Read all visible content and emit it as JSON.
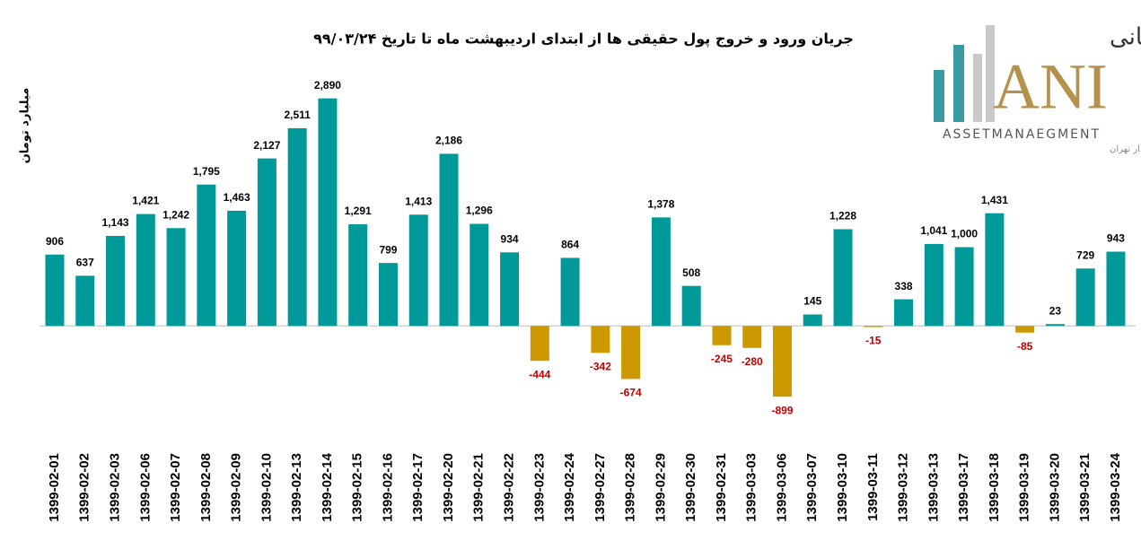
{
  "chart_data": {
    "type": "bar",
    "title": "جریان ورود و خروج پول حقیقی ها از ابتدای اردیبهشت ماه تا تاریخ ۹۹/۰۳/۲۴",
    "y_label": "میلیارد تومان",
    "categories": [
      "1399-02-01",
      "1399-02-02",
      "1399-02-03",
      "1399-02-06",
      "1399-02-07",
      "1399-02-08",
      "1399-02-09",
      "1399-02-10",
      "1399-02-13",
      "1399-02-14",
      "1399-02-15",
      "1399-02-16",
      "1399-02-17",
      "1399-02-20",
      "1399-02-21",
      "1399-02-22",
      "1399-02-23",
      "1399-02-24",
      "1399-02-27",
      "1399-02-28",
      "1399-02-29",
      "1399-02-30",
      "1399-02-31",
      "1399-03-03",
      "1399-03-06",
      "1399-03-07",
      "1399-03-10",
      "1399-03-11",
      "1399-03-12",
      "1399-03-13",
      "1399-03-17",
      "1399-03-18",
      "1399-03-19",
      "1399-03-20",
      "1399-03-21",
      "1399-03-24"
    ],
    "values": [
      906,
      637,
      1143,
      1421,
      1242,
      1795,
      1463,
      2127,
      2511,
      2890,
      1291,
      799,
      1413,
      2186,
      1296,
      934,
      -444,
      864,
      -342,
      -674,
      1378,
      508,
      -245,
      -280,
      -899,
      145,
      1228,
      -15,
      338,
      1041,
      1000,
      1431,
      -85,
      23,
      729,
      943
    ],
    "value_labels": [
      "906",
      "637",
      "1,143",
      "1,421",
      "1,242",
      "1,795",
      "1,463",
      "2,127",
      "2,511",
      "2,890",
      "1,291",
      "799",
      "1,413",
      "2,186",
      "1,296",
      "934",
      "-444",
      "864",
      "-342",
      "-674",
      "1,378",
      "508",
      "-245",
      "-280",
      "-899",
      "145",
      "1,228",
      "-15",
      "338",
      "1,041",
      "1,000",
      "1,431",
      "-85",
      "23",
      "729",
      "943"
    ],
    "positive_color": "#009999",
    "negative_color": "#cc9900",
    "negative_label_color": "#c00000",
    "ylim": [
      -1000,
      3000
    ]
  },
  "logo": {
    "name": "سبدگردان مانی",
    "mark": "ANI",
    "subtitle": "ASSETMANAEGMENT",
    "note": "تحت نظارت سازمان بورس و اوراق بهادار تهران"
  }
}
